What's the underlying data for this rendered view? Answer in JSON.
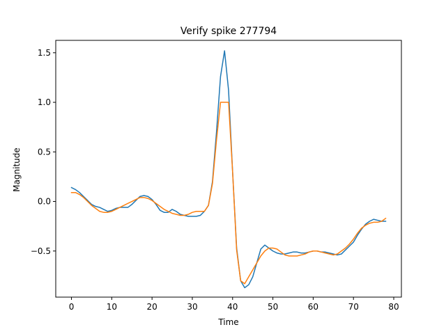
{
  "chart_data": {
    "type": "line",
    "title": "Verify spike 277794",
    "xlabel": "Time",
    "ylabel": "Magnitude",
    "xlim": [
      -3.9,
      81.9
    ],
    "ylim": [
      -0.965,
      1.625
    ],
    "xticks": [
      0,
      10,
      20,
      30,
      40,
      50,
      60,
      70,
      80
    ],
    "yticks": [
      -0.5,
      0.0,
      0.5,
      1.0,
      1.5
    ],
    "ytick_labels": [
      "−0.5",
      "0.0",
      "0.5",
      "1.0",
      "1.5"
    ],
    "grid": false,
    "series": [
      {
        "color": "#1f77b4",
        "x": [
          0,
          1,
          2,
          3,
          4,
          5,
          6,
          7,
          8,
          9,
          10,
          11,
          12,
          13,
          14,
          15,
          16,
          17,
          18,
          19,
          20,
          21,
          22,
          23,
          24,
          25,
          26,
          27,
          28,
          29,
          30,
          31,
          32,
          33,
          34,
          35,
          36,
          37,
          38,
          39,
          40,
          41,
          42,
          43,
          44,
          45,
          46,
          47,
          48,
          49,
          50,
          51,
          52,
          53,
          54,
          55,
          56,
          57,
          58,
          59,
          60,
          61,
          62,
          63,
          64,
          65,
          66,
          67,
          68,
          69,
          70,
          71,
          72,
          73,
          74,
          75,
          76,
          77,
          78
        ],
        "y": [
          0.14,
          0.12,
          0.09,
          0.05,
          0.01,
          -0.03,
          -0.05,
          -0.06,
          -0.08,
          -0.1,
          -0.09,
          -0.07,
          -0.06,
          -0.06,
          -0.06,
          -0.03,
          0.01,
          0.05,
          0.06,
          0.05,
          0.02,
          -0.03,
          -0.09,
          -0.11,
          -0.11,
          -0.08,
          -0.1,
          -0.13,
          -0.14,
          -0.15,
          -0.15,
          -0.15,
          -0.14,
          -0.1,
          -0.04,
          0.2,
          0.7,
          1.26,
          1.52,
          1.12,
          0.3,
          -0.47,
          -0.8,
          -0.87,
          -0.84,
          -0.76,
          -0.62,
          -0.48,
          -0.44,
          -0.47,
          -0.5,
          -0.52,
          -0.53,
          -0.53,
          -0.52,
          -0.51,
          -0.51,
          -0.52,
          -0.52,
          -0.51,
          -0.5,
          -0.5,
          -0.51,
          -0.51,
          -0.52,
          -0.53,
          -0.54,
          -0.53,
          -0.49,
          -0.45,
          -0.41,
          -0.34,
          -0.28,
          -0.23,
          -0.2,
          -0.18,
          -0.19,
          -0.2,
          -0.2
        ]
      },
      {
        "color": "#ff7f0e",
        "x": [
          0,
          1,
          2,
          3,
          4,
          5,
          6,
          7,
          8,
          9,
          10,
          11,
          12,
          13,
          14,
          15,
          16,
          17,
          18,
          19,
          20,
          21,
          22,
          23,
          24,
          25,
          26,
          27,
          28,
          29,
          30,
          31,
          32,
          33,
          34,
          35,
          36,
          37,
          38,
          39,
          40,
          41,
          42,
          43,
          44,
          45,
          46,
          47,
          48,
          49,
          50,
          51,
          52,
          53,
          54,
          55,
          56,
          57,
          58,
          59,
          60,
          61,
          62,
          63,
          64,
          65,
          66,
          67,
          68,
          69,
          70,
          71,
          72,
          73,
          74,
          75,
          76,
          77,
          78
        ],
        "y": [
          0.09,
          0.09,
          0.07,
          0.04,
          0.0,
          -0.04,
          -0.07,
          -0.1,
          -0.11,
          -0.11,
          -0.1,
          -0.08,
          -0.06,
          -0.04,
          -0.02,
          0.0,
          0.02,
          0.04,
          0.04,
          0.03,
          0.01,
          -0.02,
          -0.05,
          -0.08,
          -0.1,
          -0.12,
          -0.13,
          -0.14,
          -0.14,
          -0.13,
          -0.11,
          -0.1,
          -0.1,
          -0.1,
          -0.04,
          0.18,
          0.62,
          1.0,
          1.0,
          1.0,
          0.3,
          -0.49,
          -0.8,
          -0.83,
          -0.76,
          -0.69,
          -0.62,
          -0.55,
          -0.5,
          -0.47,
          -0.47,
          -0.48,
          -0.51,
          -0.54,
          -0.55,
          -0.55,
          -0.55,
          -0.54,
          -0.53,
          -0.51,
          -0.5,
          -0.5,
          -0.51,
          -0.52,
          -0.53,
          -0.54,
          -0.53,
          -0.5,
          -0.47,
          -0.43,
          -0.38,
          -0.32,
          -0.27,
          -0.24,
          -0.22,
          -0.21,
          -0.21,
          -0.2,
          -0.17
        ]
      }
    ]
  }
}
